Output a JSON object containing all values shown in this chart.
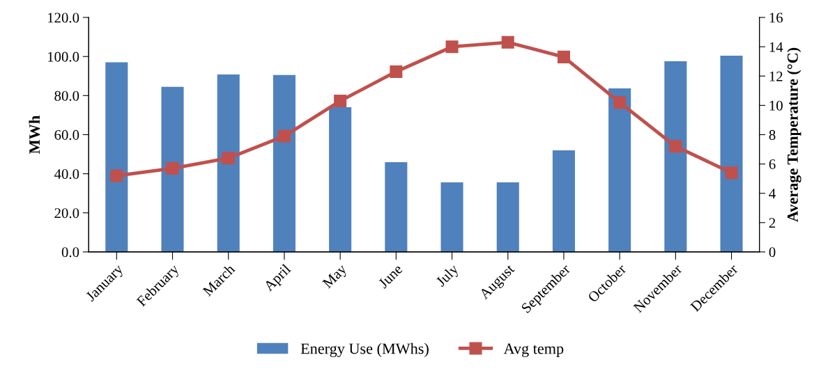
{
  "chart_data": {
    "type": "bar",
    "categories": [
      "January",
      "February",
      "March",
      "April",
      "May",
      "June",
      "July",
      "August",
      "September",
      "October",
      "November",
      "December"
    ],
    "series": [
      {
        "name": "Energy Use (MWhs)",
        "color": "#4f81bd",
        "values": [
          97.0,
          84.5,
          90.8,
          90.5,
          74.1,
          45.9,
          35.6,
          35.6,
          52.0,
          83.7,
          97.6,
          100.4
        ]
      },
      {
        "name": "Avg temp",
        "type": "line",
        "axis": "y2",
        "color": "#c0504d",
        "marker": "square",
        "line_style": "solid",
        "values": [
          5.2,
          5.7,
          6.4,
          7.9,
          10.3,
          12.3,
          14.0,
          14.3,
          13.3,
          10.2,
          7.2,
          5.4
        ]
      }
    ],
    "ylabel": "MWh",
    "y2label": "Average Temperature (°C)",
    "ylim": [
      0,
      120
    ],
    "yticks": [
      {
        "value": 0,
        "label": "0.0"
      },
      {
        "value": 20,
        "label": "20.0"
      },
      {
        "value": 40,
        "label": "40.0"
      },
      {
        "value": 60,
        "label": "60.0"
      },
      {
        "value": 80,
        "label": "80.0"
      },
      {
        "value": 100,
        "label": "100.0"
      },
      {
        "value": 120,
        "label": "120.0"
      }
    ],
    "y2lim": [
      0,
      16
    ],
    "y2ticks": [
      0,
      2,
      4,
      6,
      8,
      10,
      12,
      14,
      16
    ],
    "grid": false,
    "legend": "bottom"
  }
}
